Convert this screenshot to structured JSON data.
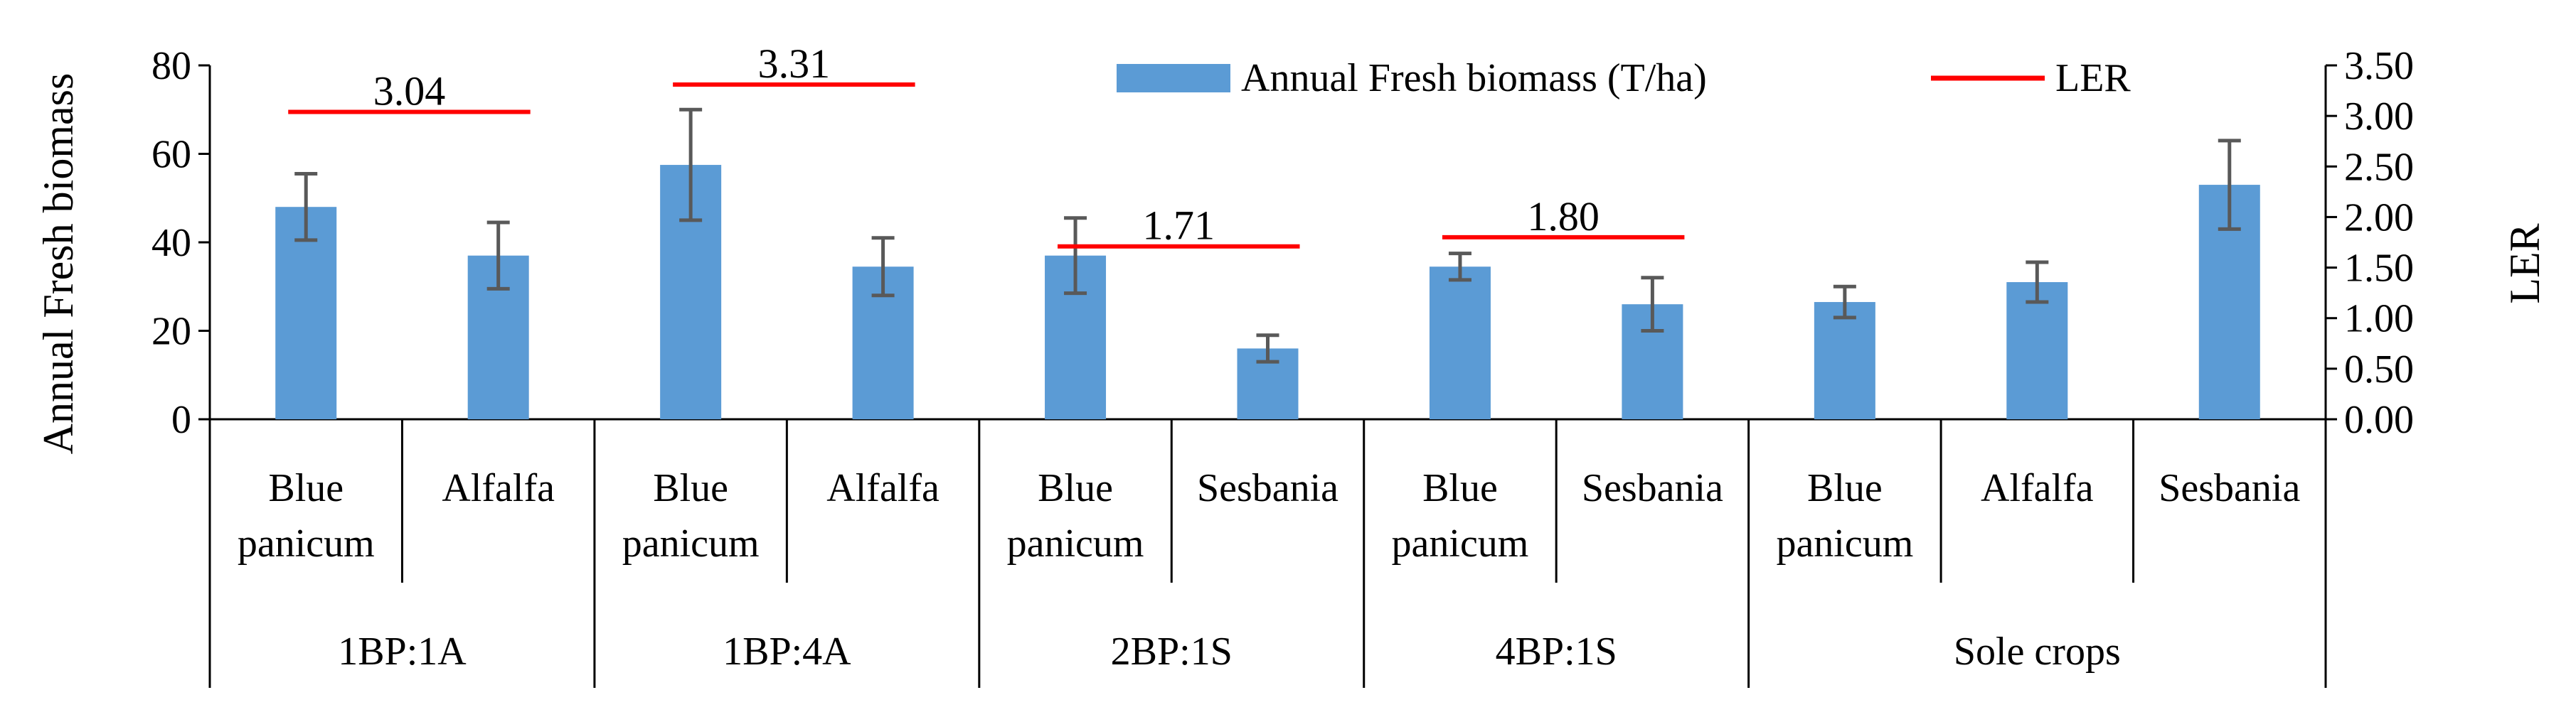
{
  "chart_data": {
    "type": "bar",
    "title": "",
    "ylabel": "Annual Fresh biomass",
    "y2label": "LER",
    "ylim": [
      0,
      80
    ],
    "y2lim": [
      0,
      3.5
    ],
    "yticks": [
      "0",
      "20",
      "40",
      "60",
      "80"
    ],
    "y2ticks": [
      "0.00",
      "0.50",
      "1.00",
      "1.50",
      "2.00",
      "2.50",
      "3.00",
      "3.50"
    ],
    "legend": {
      "position": "top-right",
      "bar_label": "Annual Fresh biomass (T/ha)",
      "line_label": "LER"
    },
    "colors": {
      "bar": "#5b9bd5",
      "ler": "#ff0000",
      "error": "#595959",
      "axis": "#000000"
    },
    "groups": [
      {
        "label": "1BP:1A",
        "ler": 3.04,
        "ler_text": "3.04",
        "categories": [
          {
            "label_lines": [
              "Blue",
              "panicum"
            ],
            "value": 48,
            "err": 7.5
          },
          {
            "label_lines": [
              "Alfalfa"
            ],
            "value": 37,
            "err": 7.5
          }
        ]
      },
      {
        "label": "1BP:4A",
        "ler": 3.31,
        "ler_text": "3.31",
        "categories": [
          {
            "label_lines": [
              "Blue",
              "panicum"
            ],
            "value": 57.5,
            "err": 12.5
          },
          {
            "label_lines": [
              "Alfalfa"
            ],
            "value": 34.5,
            "err": 6.5
          }
        ]
      },
      {
        "label": "2BP:1S",
        "ler": 1.71,
        "ler_text": "1.71",
        "categories": [
          {
            "label_lines": [
              "Blue",
              "panicum"
            ],
            "value": 37,
            "err": 8.5
          },
          {
            "label_lines": [
              "Sesbania"
            ],
            "value": 16,
            "err": 3
          }
        ]
      },
      {
        "label": "4BP:1S",
        "ler": 1.8,
        "ler_text": "1.80",
        "categories": [
          {
            "label_lines": [
              "Blue",
              "panicum"
            ],
            "value": 34.5,
            "err": 3
          },
          {
            "label_lines": [
              "Sesbania"
            ],
            "value": 26,
            "err": 6
          }
        ]
      },
      {
        "label": "Sole crops",
        "ler": null,
        "ler_text": "",
        "categories": [
          {
            "label_lines": [
              "Blue",
              "panicum"
            ],
            "value": 26.5,
            "err": 3.5
          },
          {
            "label_lines": [
              "Alfalfa"
            ],
            "value": 31,
            "err": 4.5
          },
          {
            "label_lines": [
              "Sesbania"
            ],
            "value": 53,
            "err": 10
          }
        ]
      }
    ]
  }
}
